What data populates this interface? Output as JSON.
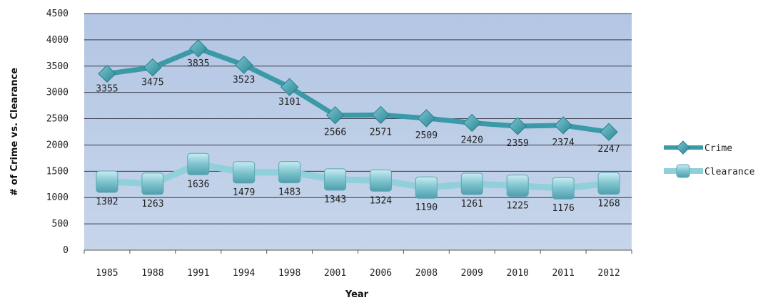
{
  "chart_data": {
    "type": "line",
    "title": "",
    "xlabel": "Year",
    "ylabel": "# of Crime vs. Clearance",
    "categories": [
      "1985",
      "1988",
      "1991",
      "1994",
      "1998",
      "2001",
      "2006",
      "2008",
      "2009",
      "2010",
      "2011",
      "2012"
    ],
    "ylim": [
      0,
      4500
    ],
    "yticks": [
      0,
      500,
      1000,
      1500,
      2000,
      2500,
      3000,
      3500,
      4000,
      4500
    ],
    "grid": true,
    "legend_position": "right",
    "series": [
      {
        "name": "Crime",
        "marker": "diamond",
        "color": "#3a9aa8",
        "values": [
          3355,
          3475,
          3835,
          3523,
          3101,
          2566,
          2571,
          2509,
          2420,
          2359,
          2374,
          2247
        ]
      },
      {
        "name": "Clearance",
        "marker": "square",
        "color": "#8fd0da",
        "values": [
          1302,
          1263,
          1636,
          1479,
          1483,
          1343,
          1324,
          1190,
          1261,
          1225,
          1176,
          1268
        ]
      }
    ],
    "colors": {
      "plot_background": "#bccde6",
      "grid": "#3a3a4a"
    }
  }
}
